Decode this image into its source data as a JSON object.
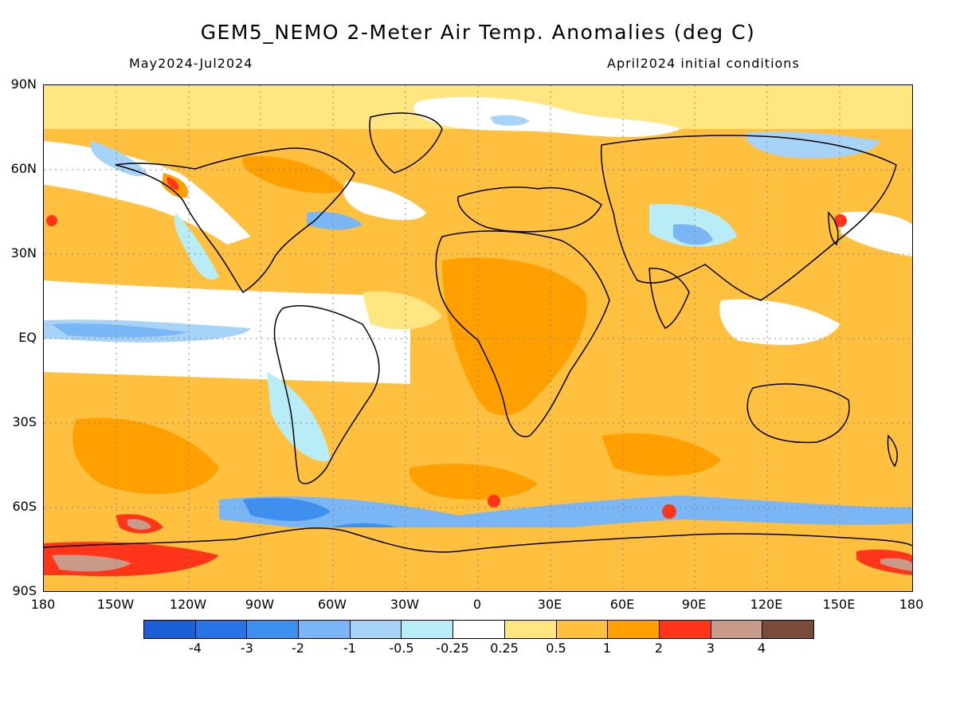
{
  "title": "GEM5_NEMO 2-Meter Air Temp. Anomalies (deg C)",
  "period": "May2024-Jul2024",
  "init": "April2024 initial conditions",
  "lat_labels": [
    "90N",
    "60N",
    "30N",
    "EQ",
    "30S",
    "60S",
    "90S"
  ],
  "lon_labels": [
    "180",
    "150W",
    "120W",
    "90W",
    "60W",
    "30W",
    "0",
    "30E",
    "60E",
    "90E",
    "120E",
    "150E",
    "180"
  ],
  "colorbar": {
    "colors": [
      "#1a5fd6",
      "#2874e6",
      "#3d90f0",
      "#7ab6f5",
      "#a6d3f7",
      "#b8ecf7",
      "#ffffff",
      "#ffe680",
      "#ffc040",
      "#ffa000",
      "#ff3418",
      "#c89a8a",
      "#7a4a3a"
    ],
    "labels": [
      "-4",
      "-3",
      "-2",
      "-1",
      "-0.5",
      "-0.25",
      "0.25",
      "0.5",
      "1",
      "2",
      "3",
      "4"
    ]
  },
  "palette": {
    "ocean_warm": "#ffe680",
    "warm": "#ffc040",
    "hot": "#ffa000",
    "very_hot": "#ff3418",
    "extreme": "#c89a8a",
    "cool": "#b8ecf7",
    "cold": "#a6d3f7",
    "colder": "#7ab6f5",
    "neutral": "#ffffff"
  }
}
